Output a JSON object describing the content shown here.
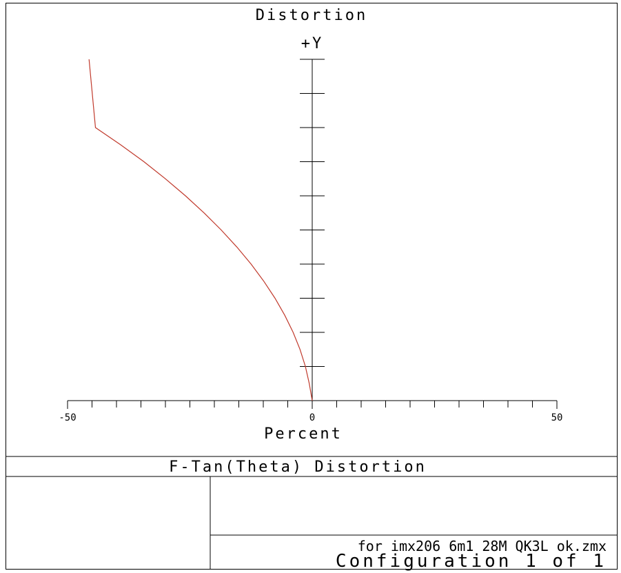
{
  "chart_data": {
    "type": "line",
    "title": "Distortion",
    "xlabel": "Percent",
    "ylabel": "+Y",
    "xlim": [
      -50,
      50
    ],
    "xticks": [
      -50,
      0,
      50
    ],
    "y_minor_ticks": 10,
    "x_minor_ticks_per_side": 10,
    "grid": false,
    "series": [
      {
        "color": "#c0392b",
        "x": [
          0,
          -0.6,
          -1.4,
          -2.5,
          -3.9,
          -5.6,
          -7.6,
          -9.9,
          -12.5,
          -15.4,
          -18.6,
          -22.1,
          -25.9,
          -30.0,
          -34.4,
          -39.2,
          -44.3,
          -45.6
        ],
        "y": [
          0,
          0.05,
          0.1,
          0.15,
          0.2,
          0.25,
          0.3,
          0.35,
          0.4,
          0.45,
          0.5,
          0.55,
          0.6,
          0.65,
          0.7,
          0.75,
          0.8,
          1.0
        ]
      }
    ]
  },
  "footer": {
    "plot_title": "F-Tan(Theta) Distortion",
    "file_name": "for imx206 6m1 28M QK3L ok.zmx",
    "configuration": "Configuration 1 of 1"
  }
}
